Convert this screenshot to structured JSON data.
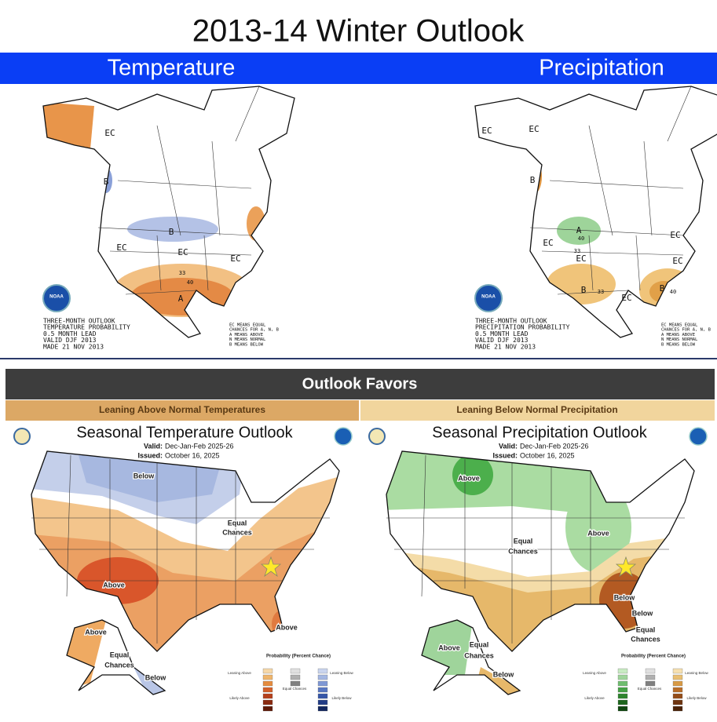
{
  "title": "2013-14 Winter Outlook",
  "top_panels": [
    {
      "header": "Temperature",
      "labels": [
        "EC",
        "B",
        "B",
        "EC",
        "EC",
        "EC",
        "A",
        "33",
        "40"
      ],
      "legend": [
        "THREE-MONTH OUTLOOK",
        "TEMPERATURE PROBABILITY",
        "0.5 MONTH LEAD",
        "VALID DJF 2013",
        "MADE 21 NOV 2013"
      ],
      "key": [
        "EC MEANS EQUAL",
        "CHANCES FOR A, N, B",
        "A MEANS ABOVE",
        "N MEANS NORMAL",
        "B MEANS BELOW"
      ],
      "logo": "NOAA"
    },
    {
      "header": "Precipitation",
      "labels": [
        "EC",
        "EC",
        "B",
        "A",
        "40",
        "33",
        "EC",
        "EC",
        "EC",
        "EC",
        "B",
        "33",
        "EC",
        "B",
        "40"
      ],
      "legend": [
        "THREE-MONTH OUTLOOK",
        "PRECIPITATION PROBABILITY",
        "0.5 MONTH LEAD",
        "VALID DJF 2013",
        "MADE 21 NOV 2013"
      ],
      "key": [
        "EC MEANS EQUAL",
        "CHANCES FOR A, N, B",
        "A MEANS ABOVE",
        "N MEANS NORMAL",
        "B MEANS BELOW"
      ],
      "logo": "NOAA"
    }
  ],
  "banner": "Outlook Favors",
  "bottom_panels": [
    {
      "subheader": "Leaning Above Normal Temperatures",
      "title": "Seasonal Temperature Outlook",
      "valid_label": "Valid:",
      "valid": "Dec-Jan-Feb 2025-26",
      "issued_label": "Issued:",
      "issued": "October 16, 2025",
      "regions": [
        "Below",
        "Equal",
        "Chances",
        "Above",
        "Above",
        "Above",
        "Equal",
        "Chances",
        "Below"
      ],
      "legend_title": "Probability (Percent Chance)",
      "legend_rows": [
        "Leaning Above",
        "Likely Above",
        "Equal Chances",
        "Leaning Below",
        "Likely Below"
      ]
    },
    {
      "subheader": "Leaning Below Normal Precipitation",
      "title": "Seasonal Precipitation Outlook",
      "valid_label": "Valid:",
      "valid": "Dec-Jan-Feb 2025-26",
      "issued_label": "Issued:",
      "issued": "October 16, 2025",
      "regions": [
        "Above",
        "Equal",
        "Chances",
        "Above",
        "Below",
        "Below",
        "Equal",
        "Chances",
        "Above",
        "Equal",
        "Chances",
        "Below"
      ],
      "legend_title": "Probability (Percent Chance)",
      "legend_rows": [
        "Leaning Above",
        "Likely Above",
        "Equal Chances",
        "Leaning Below",
        "Likely Below"
      ]
    }
  ]
}
